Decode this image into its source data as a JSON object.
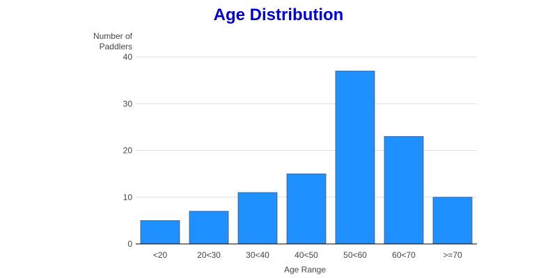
{
  "chart_data": {
    "type": "bar",
    "title": "Age Distribution",
    "ylabel_line1": "Number of",
    "ylabel_line2": "Paddlers",
    "xlabel": "Age Range",
    "categories": [
      "<20",
      "20<30",
      "30<40",
      "40<50",
      "50<60",
      "60<70",
      ">=70"
    ],
    "values": [
      5,
      7,
      11,
      15,
      37,
      23,
      10
    ],
    "ylim": [
      0,
      40
    ],
    "yticks": [
      0,
      10,
      20,
      30,
      40
    ],
    "grid": true,
    "colors": {
      "bar_fill": "#1e90ff",
      "bar_stroke": "#555555",
      "title": "#0000dd",
      "gridline": "#dddddd",
      "axis": "#000000",
      "text": "#444444"
    }
  }
}
